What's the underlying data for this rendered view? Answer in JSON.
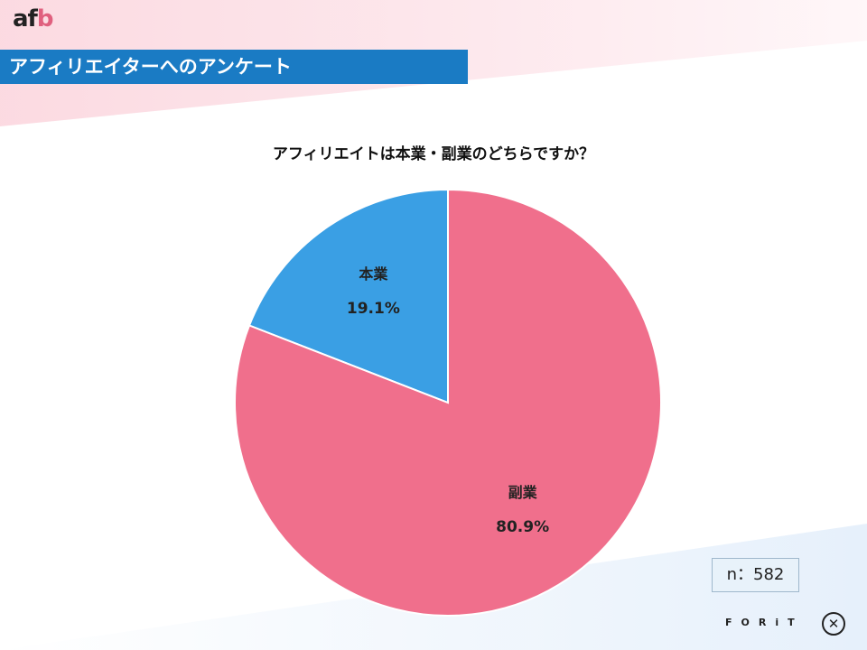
{
  "logo": {
    "prefix": "af",
    "suffix": "b"
  },
  "header": {
    "title": "アフィリエイターへのアンケート"
  },
  "chart_data": {
    "type": "pie",
    "title": "アフィリエイトは本業・副業のどちらですか？",
    "slices": [
      {
        "label": "本業",
        "value": 19.1,
        "value_label": "19.1%",
        "color": "#3a9fe4"
      },
      {
        "label": "副業",
        "value": 80.9,
        "value_label": "80.9%",
        "color": "#f06f8c"
      }
    ]
  },
  "sample": {
    "text": "n：582"
  },
  "footer": {
    "brand": "FORiT",
    "icon_glyph": "✕"
  },
  "colors": {
    "title_bar": "#1a7bc4",
    "pink_accent": "#e0607e"
  }
}
